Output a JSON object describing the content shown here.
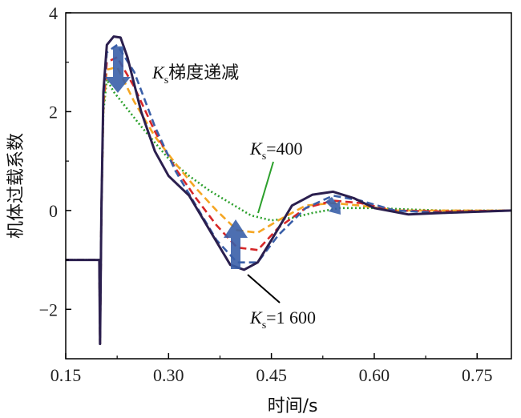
{
  "chart_data": {
    "type": "line",
    "title": "",
    "xlabel": "时间/s",
    "ylabel": "机体过载系数",
    "xlim": [
      0.15,
      0.8
    ],
    "ylim": [
      -3,
      4
    ],
    "xticks": [
      "0.15",
      "0.30",
      "0.45",
      "0.60",
      "0.75"
    ],
    "yticks": [
      "−2",
      "0",
      "2",
      "4"
    ],
    "grid": false,
    "annotations": {
      "decrease": {
        "ks": "K",
        "sub": "s",
        "text": "梯度递减"
      },
      "low": {
        "ks": "K",
        "sub": "s",
        "text": "=400"
      },
      "high": {
        "ks": "K",
        "sub": "s",
        "text": "=1 600"
      }
    },
    "series": [
      {
        "key": "ks_400",
        "color": "#2ca02c",
        "style": "dotted",
        "width": 2.6,
        "x": [
          0.15,
          0.199,
          0.2,
          0.202,
          0.205,
          0.21,
          0.22,
          0.26,
          0.3,
          0.33,
          0.36,
          0.39,
          0.42,
          0.45,
          0.48,
          0.51,
          0.55,
          0.6,
          0.65,
          0.7,
          0.8
        ],
        "y": [
          -1.0,
          -1.0,
          -2.7,
          0.0,
          2.0,
          2.65,
          2.4,
          1.7,
          1.05,
          0.7,
          0.4,
          0.15,
          -0.1,
          -0.2,
          -0.15,
          -0.05,
          0.05,
          0.05,
          0.02,
          0.0,
          0.0
        ]
      },
      {
        "key": "ks_mid_a",
        "color": "#f5a623",
        "style": "dashed",
        "width": 2.6,
        "x": [
          0.15,
          0.199,
          0.2,
          0.202,
          0.205,
          0.21,
          0.225,
          0.25,
          0.28,
          0.31,
          0.34,
          0.37,
          0.4,
          0.43,
          0.46,
          0.5,
          0.54,
          0.58,
          0.63,
          0.7,
          0.8
        ],
        "y": [
          -1.0,
          -1.0,
          -2.7,
          0.0,
          2.1,
          2.85,
          2.9,
          2.2,
          1.5,
          0.95,
          0.45,
          0.0,
          -0.4,
          -0.45,
          -0.2,
          0.1,
          0.15,
          0.1,
          0.0,
          0.0,
          0.0
        ]
      },
      {
        "key": "ks_mid_b",
        "color": "#d62728",
        "style": "dashed",
        "width": 2.6,
        "x": [
          0.15,
          0.199,
          0.2,
          0.202,
          0.205,
          0.21,
          0.225,
          0.25,
          0.28,
          0.31,
          0.34,
          0.37,
          0.4,
          0.43,
          0.46,
          0.5,
          0.54,
          0.58,
          0.63,
          0.7,
          0.8
        ],
        "y": [
          -1.0,
          -1.0,
          -2.7,
          0.0,
          2.2,
          3.0,
          3.1,
          2.5,
          1.6,
          0.85,
          0.25,
          -0.3,
          -0.75,
          -0.8,
          -0.35,
          0.05,
          0.2,
          0.15,
          0.0,
          -0.02,
          0.0
        ]
      },
      {
        "key": "ks_mid_c",
        "color": "#3a5fa8",
        "style": "dashed",
        "width": 2.6,
        "x": [
          0.15,
          0.199,
          0.2,
          0.202,
          0.205,
          0.21,
          0.225,
          0.25,
          0.28,
          0.31,
          0.34,
          0.37,
          0.4,
          0.43,
          0.46,
          0.5,
          0.54,
          0.58,
          0.63,
          0.7,
          0.8
        ],
        "y": [
          -1.0,
          -1.0,
          -2.7,
          0.0,
          2.3,
          3.2,
          3.35,
          2.8,
          1.7,
          0.8,
          0.1,
          -0.6,
          -1.05,
          -1.05,
          -0.5,
          0.05,
          0.3,
          0.2,
          0.0,
          -0.05,
          0.0
        ]
      },
      {
        "key": "ks_1600",
        "color": "#2b1f4e",
        "style": "solid",
        "width": 3.0,
        "x": [
          0.15,
          0.199,
          0.2,
          0.202,
          0.205,
          0.21,
          0.22,
          0.23,
          0.24,
          0.26,
          0.28,
          0.3,
          0.33,
          0.36,
          0.39,
          0.41,
          0.43,
          0.45,
          0.48,
          0.51,
          0.54,
          0.57,
          0.6,
          0.65,
          0.7,
          0.8
        ],
        "y": [
          -1.0,
          -1.0,
          -2.7,
          0.0,
          2.4,
          3.35,
          3.52,
          3.5,
          3.1,
          2.0,
          1.2,
          0.7,
          0.3,
          -0.4,
          -1.1,
          -1.2,
          -1.05,
          -0.6,
          0.1,
          0.32,
          0.38,
          0.25,
          0.05,
          -0.08,
          -0.05,
          0.0
        ]
      }
    ]
  }
}
